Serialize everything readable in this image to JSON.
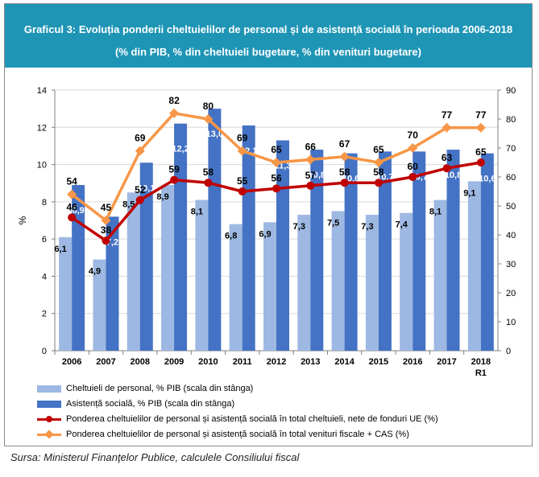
{
  "header": {
    "title": "Graficul 3: Evoluția ponderii cheltuielilor de personal și de asistență socială în perioada 2006-2018",
    "subtitle": "(% din PIB, % din cheltuieli bugetare, % din venituri bugetare)"
  },
  "colors": {
    "header_bg": "#1f95b6",
    "personal_bar": "#9db8e2",
    "asistenta_bar": "#4472c4",
    "ponderea_cheltuieli_line": "#c00000",
    "ponderea_venituri_line": "#f79646"
  },
  "chart_data": {
    "type": "bar",
    "categories": [
      "2006",
      "2007",
      "2008",
      "2009",
      "2010",
      "2011",
      "2012",
      "2013",
      "2014",
      "2015",
      "2016",
      "2017",
      "2018"
    ],
    "category_sublabels": [
      "",
      "",
      "",
      "",
      "",
      "",
      "",
      "",
      "",
      "",
      "",
      "",
      "R1"
    ],
    "ylabel": "%",
    "ylim": [
      0,
      14
    ],
    "y_ticks": [
      0,
      2,
      4,
      6,
      8,
      10,
      12,
      14
    ],
    "y2lim": [
      0,
      90
    ],
    "y2_ticks": [
      0,
      10,
      20,
      30,
      40,
      50,
      60,
      70,
      80,
      90
    ],
    "grid": true,
    "legend_position": "bottom",
    "series": [
      {
        "name": "Cheltuieli de personal, % PIB (scala din stânga)",
        "type": "bar",
        "axis": "left",
        "values": [
          6.1,
          4.9,
          8.5,
          8.9,
          8.1,
          6.8,
          6.9,
          7.3,
          7.5,
          7.3,
          7.4,
          8.1,
          9.1
        ],
        "labels": [
          "6,1",
          "4,9",
          "8,5",
          "8,9",
          "8,1",
          "6,8",
          "6,9",
          "7,3",
          "7,5",
          "7,3",
          "7,4",
          "8,1",
          "9,1"
        ]
      },
      {
        "name": "Asistență socială, % PIB (scala din stânga)",
        "type": "bar",
        "axis": "left",
        "values": [
          8.9,
          7.2,
          10.1,
          12.2,
          13.0,
          12.1,
          11.3,
          10.8,
          10.6,
          10.7,
          10.7,
          10.8,
          10.6
        ],
        "labels": [
          "8,9",
          "7,2",
          "10,1",
          "12,2",
          "13,0",
          "12,1",
          "11,3",
          "10,8",
          "10,6",
          "10,7",
          "10,7",
          "10,8",
          "10,6"
        ]
      },
      {
        "name": "Ponderea cheltuielilor de personal și asistență socială în total cheltuieli, nete de fonduri UE (%)",
        "type": "line",
        "axis": "right",
        "values": [
          46,
          38,
          52,
          59,
          58,
          55,
          56,
          57,
          58,
          58,
          60,
          63,
          65
        ],
        "labels": [
          "46",
          "38",
          "52",
          "59",
          "58",
          "55",
          "56",
          "57",
          "58",
          "58",
          "60",
          "63",
          "65"
        ]
      },
      {
        "name": "Ponderea cheltuielilor de personal și asistență socială în total venituri fiscale + CAS (%)",
        "type": "line",
        "axis": "right",
        "values": [
          54,
          45,
          69,
          82,
          80,
          69,
          65,
          66,
          67,
          65,
          70,
          77,
          77
        ],
        "labels": [
          "54",
          "45",
          "69",
          "82",
          "80",
          "69",
          "65",
          "66",
          "67",
          "65",
          "70",
          "77",
          "77"
        ]
      }
    ]
  },
  "source": "Sursa: Ministerul Finanţelor Publice, calculele Consiliului fiscal"
}
